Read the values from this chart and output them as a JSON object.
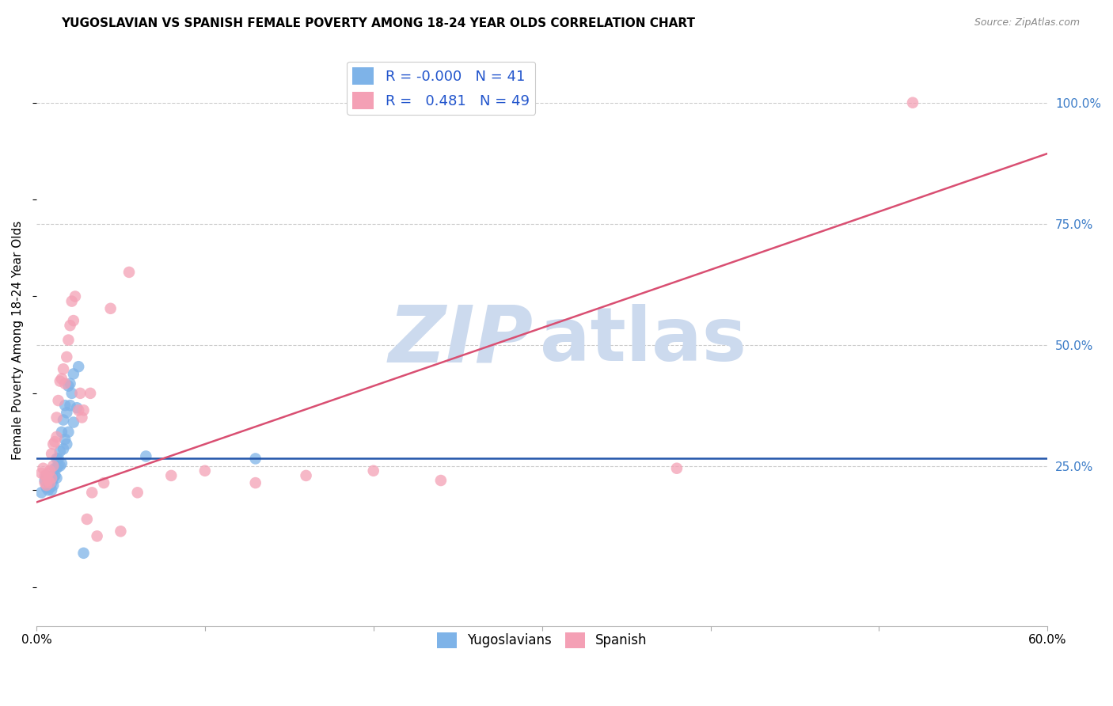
{
  "title": "YUGOSLAVIAN VS SPANISH FEMALE POVERTY AMONG 18-24 YEAR OLDS CORRELATION CHART",
  "source": "Source: ZipAtlas.com",
  "ylabel": "Female Poverty Among 18-24 Year Olds",
  "xlim": [
    0.0,
    0.6
  ],
  "ylim": [
    -0.08,
    1.1
  ],
  "x_ticks": [
    0.0,
    0.1,
    0.2,
    0.3,
    0.4,
    0.5,
    0.6
  ],
  "y_ticks_right": [
    0.25,
    0.5,
    0.75,
    1.0
  ],
  "legend_r_yug": "-0.000",
  "legend_n_yug": "41",
  "legend_r_spa": "0.481",
  "legend_n_spa": "49",
  "yug_color": "#7eb3e8",
  "spa_color": "#f4a0b5",
  "trend_yug_color": "#2255aa",
  "trend_spa_color": "#d94f72",
  "background_color": "#ffffff",
  "grid_color": "#cccccc",
  "yug_trend_y": 0.265,
  "yug_trend_x_end": 0.6,
  "spa_trend_x0": 0.0,
  "spa_trend_y0": 0.175,
  "spa_trend_x1": 0.6,
  "spa_trend_y1": 0.895,
  "yug_points_x": [
    0.003,
    0.005,
    0.006,
    0.006,
    0.007,
    0.007,
    0.008,
    0.008,
    0.009,
    0.009,
    0.01,
    0.01,
    0.011,
    0.011,
    0.012,
    0.012,
    0.012,
    0.013,
    0.013,
    0.014,
    0.014,
    0.015,
    0.015,
    0.016,
    0.016,
    0.017,
    0.017,
    0.018,
    0.018,
    0.019,
    0.019,
    0.02,
    0.02,
    0.021,
    0.022,
    0.022,
    0.024,
    0.025,
    0.028,
    0.065,
    0.13
  ],
  "yug_points_y": [
    0.195,
    0.22,
    0.205,
    0.23,
    0.2,
    0.225,
    0.205,
    0.215,
    0.2,
    0.215,
    0.21,
    0.225,
    0.23,
    0.245,
    0.225,
    0.245,
    0.265,
    0.25,
    0.265,
    0.25,
    0.28,
    0.255,
    0.32,
    0.285,
    0.345,
    0.305,
    0.375,
    0.295,
    0.36,
    0.32,
    0.415,
    0.375,
    0.42,
    0.4,
    0.34,
    0.44,
    0.37,
    0.455,
    0.07,
    0.27,
    0.265
  ],
  "spa_points_x": [
    0.003,
    0.004,
    0.005,
    0.005,
    0.006,
    0.006,
    0.007,
    0.007,
    0.008,
    0.008,
    0.009,
    0.009,
    0.01,
    0.01,
    0.011,
    0.012,
    0.012,
    0.013,
    0.014,
    0.015,
    0.016,
    0.017,
    0.018,
    0.019,
    0.02,
    0.021,
    0.022,
    0.023,
    0.025,
    0.026,
    0.027,
    0.028,
    0.03,
    0.032,
    0.033,
    0.036,
    0.04,
    0.044,
    0.05,
    0.055,
    0.06,
    0.08,
    0.1,
    0.13,
    0.16,
    0.2,
    0.24,
    0.38,
    0.52
  ],
  "spa_points_y": [
    0.235,
    0.245,
    0.215,
    0.23,
    0.21,
    0.23,
    0.22,
    0.235,
    0.215,
    0.24,
    0.225,
    0.275,
    0.25,
    0.295,
    0.3,
    0.31,
    0.35,
    0.385,
    0.425,
    0.43,
    0.45,
    0.42,
    0.475,
    0.51,
    0.54,
    0.59,
    0.55,
    0.6,
    0.365,
    0.4,
    0.35,
    0.365,
    0.14,
    0.4,
    0.195,
    0.105,
    0.215,
    0.575,
    0.115,
    0.65,
    0.195,
    0.23,
    0.24,
    0.215,
    0.23,
    0.24,
    0.22,
    0.245,
    1.0
  ],
  "watermark_zip_color": "#ccdaee",
  "watermark_atlas_color": "#ccdaee",
  "top_dashed_line_y": 1.0,
  "right_label_color": "#3d7dc8"
}
